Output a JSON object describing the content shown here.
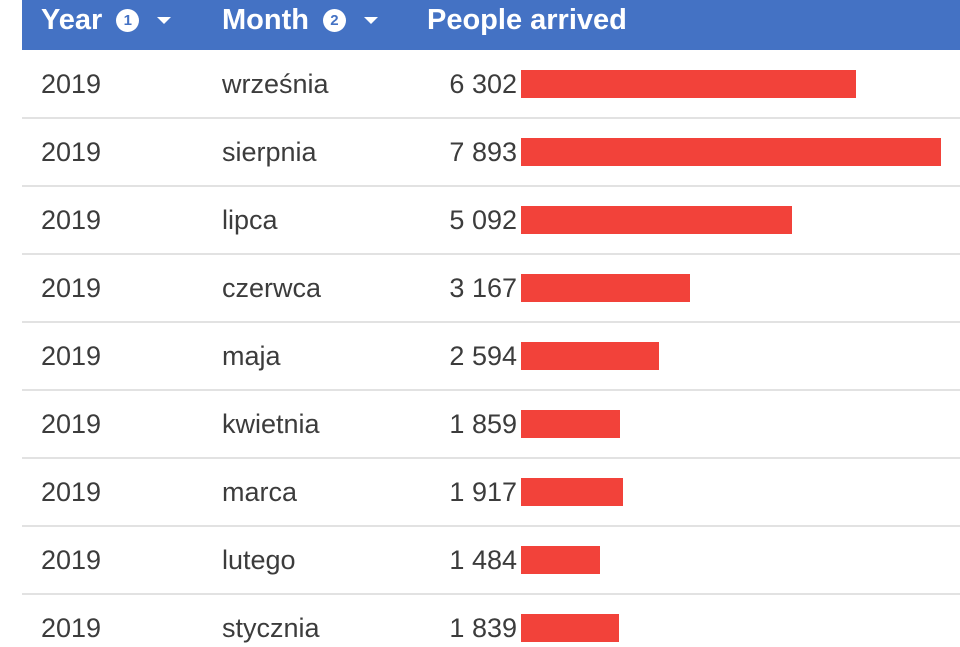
{
  "header": {
    "year_label": "Year",
    "year_sort_index": "1",
    "month_label": "Month",
    "month_sort_index": "2",
    "people_label": "People arrived"
  },
  "colors": {
    "header_bg": "#4472c4",
    "bar": "#f2423a",
    "row_divider": "#e2e2e2"
  },
  "chart_data": {
    "type": "table",
    "columns": [
      "Year",
      "Month",
      "People arrived"
    ],
    "bar_max": 7893,
    "rows": [
      {
        "year": "2019",
        "month": "września",
        "value": 6302,
        "value_label": "6 302"
      },
      {
        "year": "2019",
        "month": "sierpnia",
        "value": 7893,
        "value_label": "7 893"
      },
      {
        "year": "2019",
        "month": "lipca",
        "value": 5092,
        "value_label": "5 092"
      },
      {
        "year": "2019",
        "month": "czerwca",
        "value": 3167,
        "value_label": "3 167"
      },
      {
        "year": "2019",
        "month": "maja",
        "value": 2594,
        "value_label": "2 594"
      },
      {
        "year": "2019",
        "month": "kwietnia",
        "value": 1859,
        "value_label": "1 859"
      },
      {
        "year": "2019",
        "month": "marca",
        "value": 1917,
        "value_label": "1 917"
      },
      {
        "year": "2019",
        "month": "lutego",
        "value": 1484,
        "value_label": "1 484"
      },
      {
        "year": "2019",
        "month": "stycznia",
        "value": 1839,
        "value_label": "1 839"
      }
    ]
  }
}
